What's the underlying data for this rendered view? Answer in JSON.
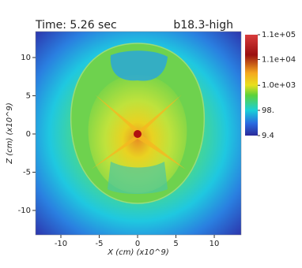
{
  "chart_data": {
    "type": "heatmap",
    "title": "Time: 5.26 sec",
    "subtitle": "b18.3-high",
    "x_label": "X (cm) (x10^9)",
    "y_label": "Z (cm) (x10^9)",
    "xlim": [
      -13.3,
      13.5
    ],
    "xticks": [
      -10,
      -5,
      0,
      5,
      10
    ],
    "ylim": [
      -13.2,
      13.4
    ],
    "yticks": [
      -10,
      -5,
      0,
      5,
      10
    ],
    "colorbar": {
      "log": true,
      "lim": [
        9.4,
        110000
      ],
      "ticks": [
        {
          "value": 110000,
          "label": "1.1e+05"
        },
        {
          "value": 11000,
          "label": "1.1e+04"
        },
        {
          "value": 1000,
          "label": "1.0e+03"
        },
        {
          "value": 98,
          "label": "98."
        },
        9.4
      ]
    }
  }
}
